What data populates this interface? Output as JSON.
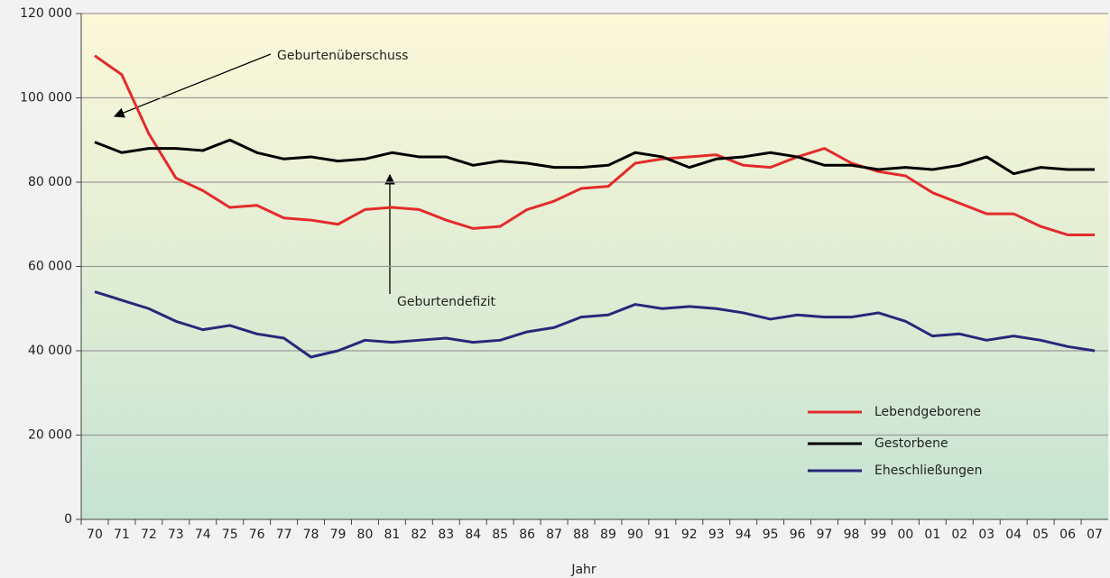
{
  "chart_data": {
    "type": "line",
    "x_label": "Jahr",
    "categories": [
      "70",
      "71",
      "72",
      "73",
      "74",
      "75",
      "76",
      "77",
      "78",
      "79",
      "80",
      "81",
      "82",
      "83",
      "84",
      "85",
      "86",
      "87",
      "88",
      "89",
      "90",
      "91",
      "92",
      "93",
      "94",
      "95",
      "96",
      "97",
      "98",
      "99",
      "00",
      "01",
      "02",
      "03",
      "04",
      "05",
      "06",
      "07"
    ],
    "series": [
      {
        "name": "Lebendgeborene",
        "color": "#e32b2b",
        "values": [
          110000,
          105500,
          91500,
          81000,
          78000,
          74000,
          74500,
          71500,
          71000,
          70000,
          73500,
          74000,
          73500,
          71000,
          69000,
          69500,
          73500,
          75500,
          78500,
          79000,
          84500,
          85500,
          86000,
          86500,
          84000,
          83500,
          86000,
          88000,
          84500,
          82500,
          81500,
          77500,
          75000,
          72500,
          72500,
          69500,
          67500,
          67500
        ]
      },
      {
        "name": "Gestorbene",
        "color": "#000000",
        "values": [
          89500,
          87000,
          88000,
          88000,
          87500,
          90000,
          87000,
          85500,
          86000,
          85000,
          85500,
          87000,
          86000,
          86000,
          84000,
          85000,
          84500,
          83500,
          83500,
          84000,
          87000,
          86000,
          83500,
          85500,
          86000,
          87000,
          86000,
          84000,
          84000,
          83000,
          83500,
          83000,
          84000,
          86000,
          82000,
          83500,
          83000,
          83000
        ]
      },
      {
        "name": "Eheschließungen",
        "color": "#27287a",
        "values": [
          54000,
          52000,
          50000,
          47000,
          45000,
          46000,
          44000,
          43000,
          38500,
          40000,
          42500,
          42000,
          42500,
          43000,
          42000,
          42500,
          44500,
          45500,
          48000,
          48500,
          51000,
          50000,
          50500,
          50000,
          49000,
          47500,
          48500,
          48000,
          48000,
          49000,
          47000,
          43500,
          44000,
          42500,
          43500,
          42500,
          41000,
          40000
        ]
      }
    ],
    "ylim": [
      0,
      120000
    ],
    "yticks": [
      {
        "value": 0,
        "label": "0"
      },
      {
        "value": 20000,
        "label": "20 000"
      },
      {
        "value": 40000,
        "label": "40 000"
      },
      {
        "value": 60000,
        "label": "60 000"
      },
      {
        "value": 80000,
        "label": "80 000"
      },
      {
        "value": 100000,
        "label": "100 000"
      },
      {
        "value": 120000,
        "label": "120 000"
      }
    ],
    "grid": true,
    "legend": "lower right",
    "annotations": [
      {
        "text": "Geburtenüberschuss"
      },
      {
        "text": "Geburtendefizit"
      }
    ]
  }
}
